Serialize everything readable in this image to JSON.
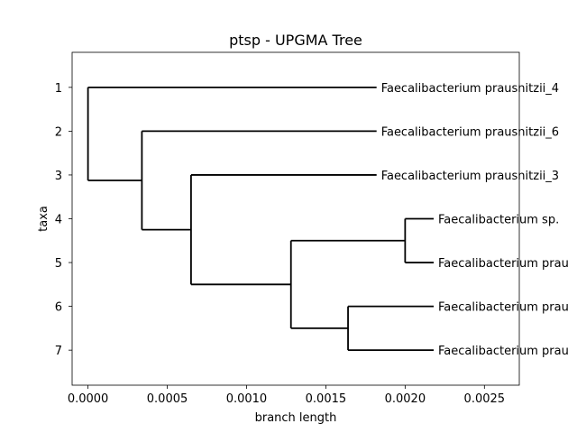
{
  "chart_data": {
    "type": "dendrogram",
    "title": "ptsp - UPGMA Tree",
    "xlabel": "branch length",
    "ylabel": "taxa",
    "xlim": [
      -0.0001,
      0.00272
    ],
    "ylim": [
      7.8,
      0.2
    ],
    "x_ticks": [
      {
        "value": 0.0,
        "label": "0.0000"
      },
      {
        "value": 0.0005,
        "label": "0.0005"
      },
      {
        "value": 0.001,
        "label": "0.0010"
      },
      {
        "value": 0.0015,
        "label": "0.0015"
      },
      {
        "value": 0.002,
        "label": "0.0020"
      },
      {
        "value": 0.0025,
        "label": "0.0025"
      }
    ],
    "y_ticks": [
      {
        "value": 1,
        "label": "1"
      },
      {
        "value": 2,
        "label": "2"
      },
      {
        "value": 3,
        "label": "3"
      },
      {
        "value": 4,
        "label": "4"
      },
      {
        "value": 5,
        "label": "5"
      },
      {
        "value": 6,
        "label": "6"
      },
      {
        "value": 7,
        "label": "7"
      }
    ],
    "leaves": [
      {
        "y": 1,
        "x_end": 0.00182,
        "label": "Faecalibacterium prausnitzii_4"
      },
      {
        "y": 2,
        "x_end": 0.00182,
        "label": "Faecalibacterium prausnitzii_6"
      },
      {
        "y": 3,
        "x_end": 0.00182,
        "label": "Faecalibacterium prausnitzii_3"
      },
      {
        "y": 4,
        "x_end": 0.00218,
        "label": "Faecalibacterium sp."
      },
      {
        "y": 5,
        "x_end": 0.00218,
        "label": "Faecalibacterium prau"
      },
      {
        "y": 6,
        "x_end": 0.00218,
        "label": "Faecalibacterium prau"
      },
      {
        "y": 7,
        "x_end": 0.00218,
        "label": "Faecalibacterium prau"
      }
    ],
    "branches": [
      {
        "x1": 0.0,
        "y1": 1,
        "x2": 0.00182,
        "y2": 1
      },
      {
        "x1": 0.00034,
        "y1": 2,
        "x2": 0.00182,
        "y2": 2
      },
      {
        "x1": 0.00065,
        "y1": 3,
        "x2": 0.00182,
        "y2": 3
      },
      {
        "x1": 0.002,
        "y1": 4,
        "x2": 0.00218,
        "y2": 4
      },
      {
        "x1": 0.002,
        "y1": 5,
        "x2": 0.00218,
        "y2": 5
      },
      {
        "x1": 0.00164,
        "y1": 6,
        "x2": 0.00218,
        "y2": 6
      },
      {
        "x1": 0.00164,
        "y1": 7,
        "x2": 0.00218,
        "y2": 7
      },
      {
        "x1": 0.002,
        "y1": 4,
        "x2": 0.002,
        "y2": 5
      },
      {
        "x1": 0.00164,
        "y1": 6,
        "x2": 0.00164,
        "y2": 7
      },
      {
        "x1": 0.00128,
        "y1": 4.5,
        "x2": 0.002,
        "y2": 4.5
      },
      {
        "x1": 0.00128,
        "y1": 6.5,
        "x2": 0.00164,
        "y2": 6.5
      },
      {
        "x1": 0.00128,
        "y1": 4.5,
        "x2": 0.00128,
        "y2": 6.5
      },
      {
        "x1": 0.00065,
        "y1": 5.5,
        "x2": 0.00128,
        "y2": 5.5
      },
      {
        "x1": 0.00065,
        "y1": 3,
        "x2": 0.00065,
        "y2": 5.5
      },
      {
        "x1": 0.00034,
        "y1": 4.25,
        "x2": 0.00065,
        "y2": 4.25
      },
      {
        "x1": 0.00034,
        "y1": 2,
        "x2": 0.00034,
        "y2": 4.25
      },
      {
        "x1": 0.0,
        "y1": 3.125,
        "x2": 0.00034,
        "y2": 3.125
      },
      {
        "x1": 0.0,
        "y1": 1,
        "x2": 0.0,
        "y2": 3.125
      }
    ]
  }
}
